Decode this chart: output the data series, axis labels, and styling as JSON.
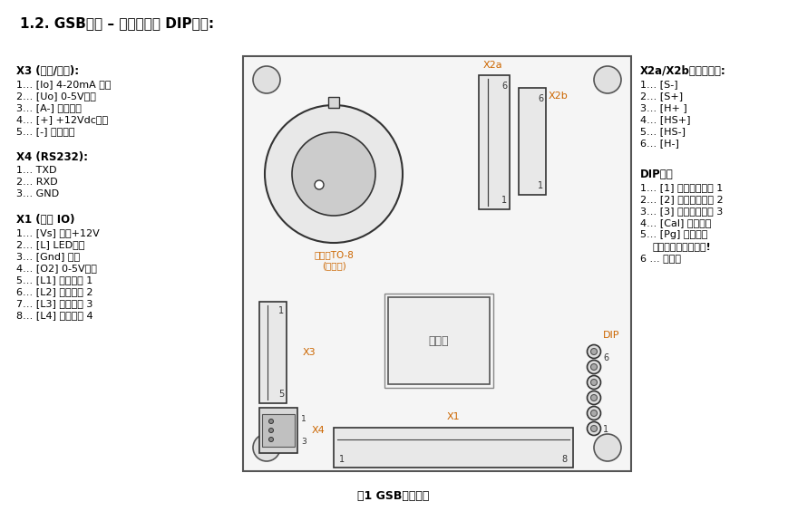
{
  "title": "1.2. GSB布局 – 端子分配和 DIP开关:",
  "caption": "图1 GSB端子分配",
  "bg_color": "#ffffff",
  "text_color": "#000000",
  "orange_color": "#cc6600",
  "x3_title": "X3 (电源/模拟):",
  "x3_lines": [
    "1… [Io] 4-20mA 输出",
    "2… [Uo] 0-5V输出",
    "3… [A-] 模拟接地",
    "4… [+] +12Vdc电源",
    "5… [-] 地面电源"
  ],
  "x4_title": "X4 (RS232):",
  "x4_lines": [
    "1… TXD",
    "2… RXD",
    "3… GND"
  ],
  "x1_title": "X1 (普通 IO)",
  "x1_lines": [
    "1… [Vs] 可选+12V",
    "2… [L] LED输出",
    "3… [Gnd] 接地",
    "4… [O2] 0-5V输出",
    "5… [L1] 阀值开关 1",
    "6… [L2] 阀值开关 2",
    "7… [L3] 阀值开关 3",
    "8… [L4] 阀值开关 4"
  ],
  "x2ab_title": "X2a/X2b外接传感器:",
  "x2ab_lines": [
    "1… [S-]",
    "2… [S+]",
    "3… [H+ ]",
    "4… [HS+]",
    "5… [HS-]",
    "6… [H-]"
  ],
  "dip_title": "DIP开关",
  "dip_lines": [
    "1… [1] 传感器选择位 1",
    "2… [2] 传感器选择位 2",
    "3… [3] 传感器选择位 3",
    "4… [Cal] 校准开关",
    "5… [Pg] 编程开关"
  ],
  "dip_bold_line": "在正常工作期间关闭!",
  "dip_last_line": "6 … 不使用",
  "to8_label1": "可选的TO-8",
  "to8_label2": "(在板上)",
  "ctrl_label": "控制器"
}
